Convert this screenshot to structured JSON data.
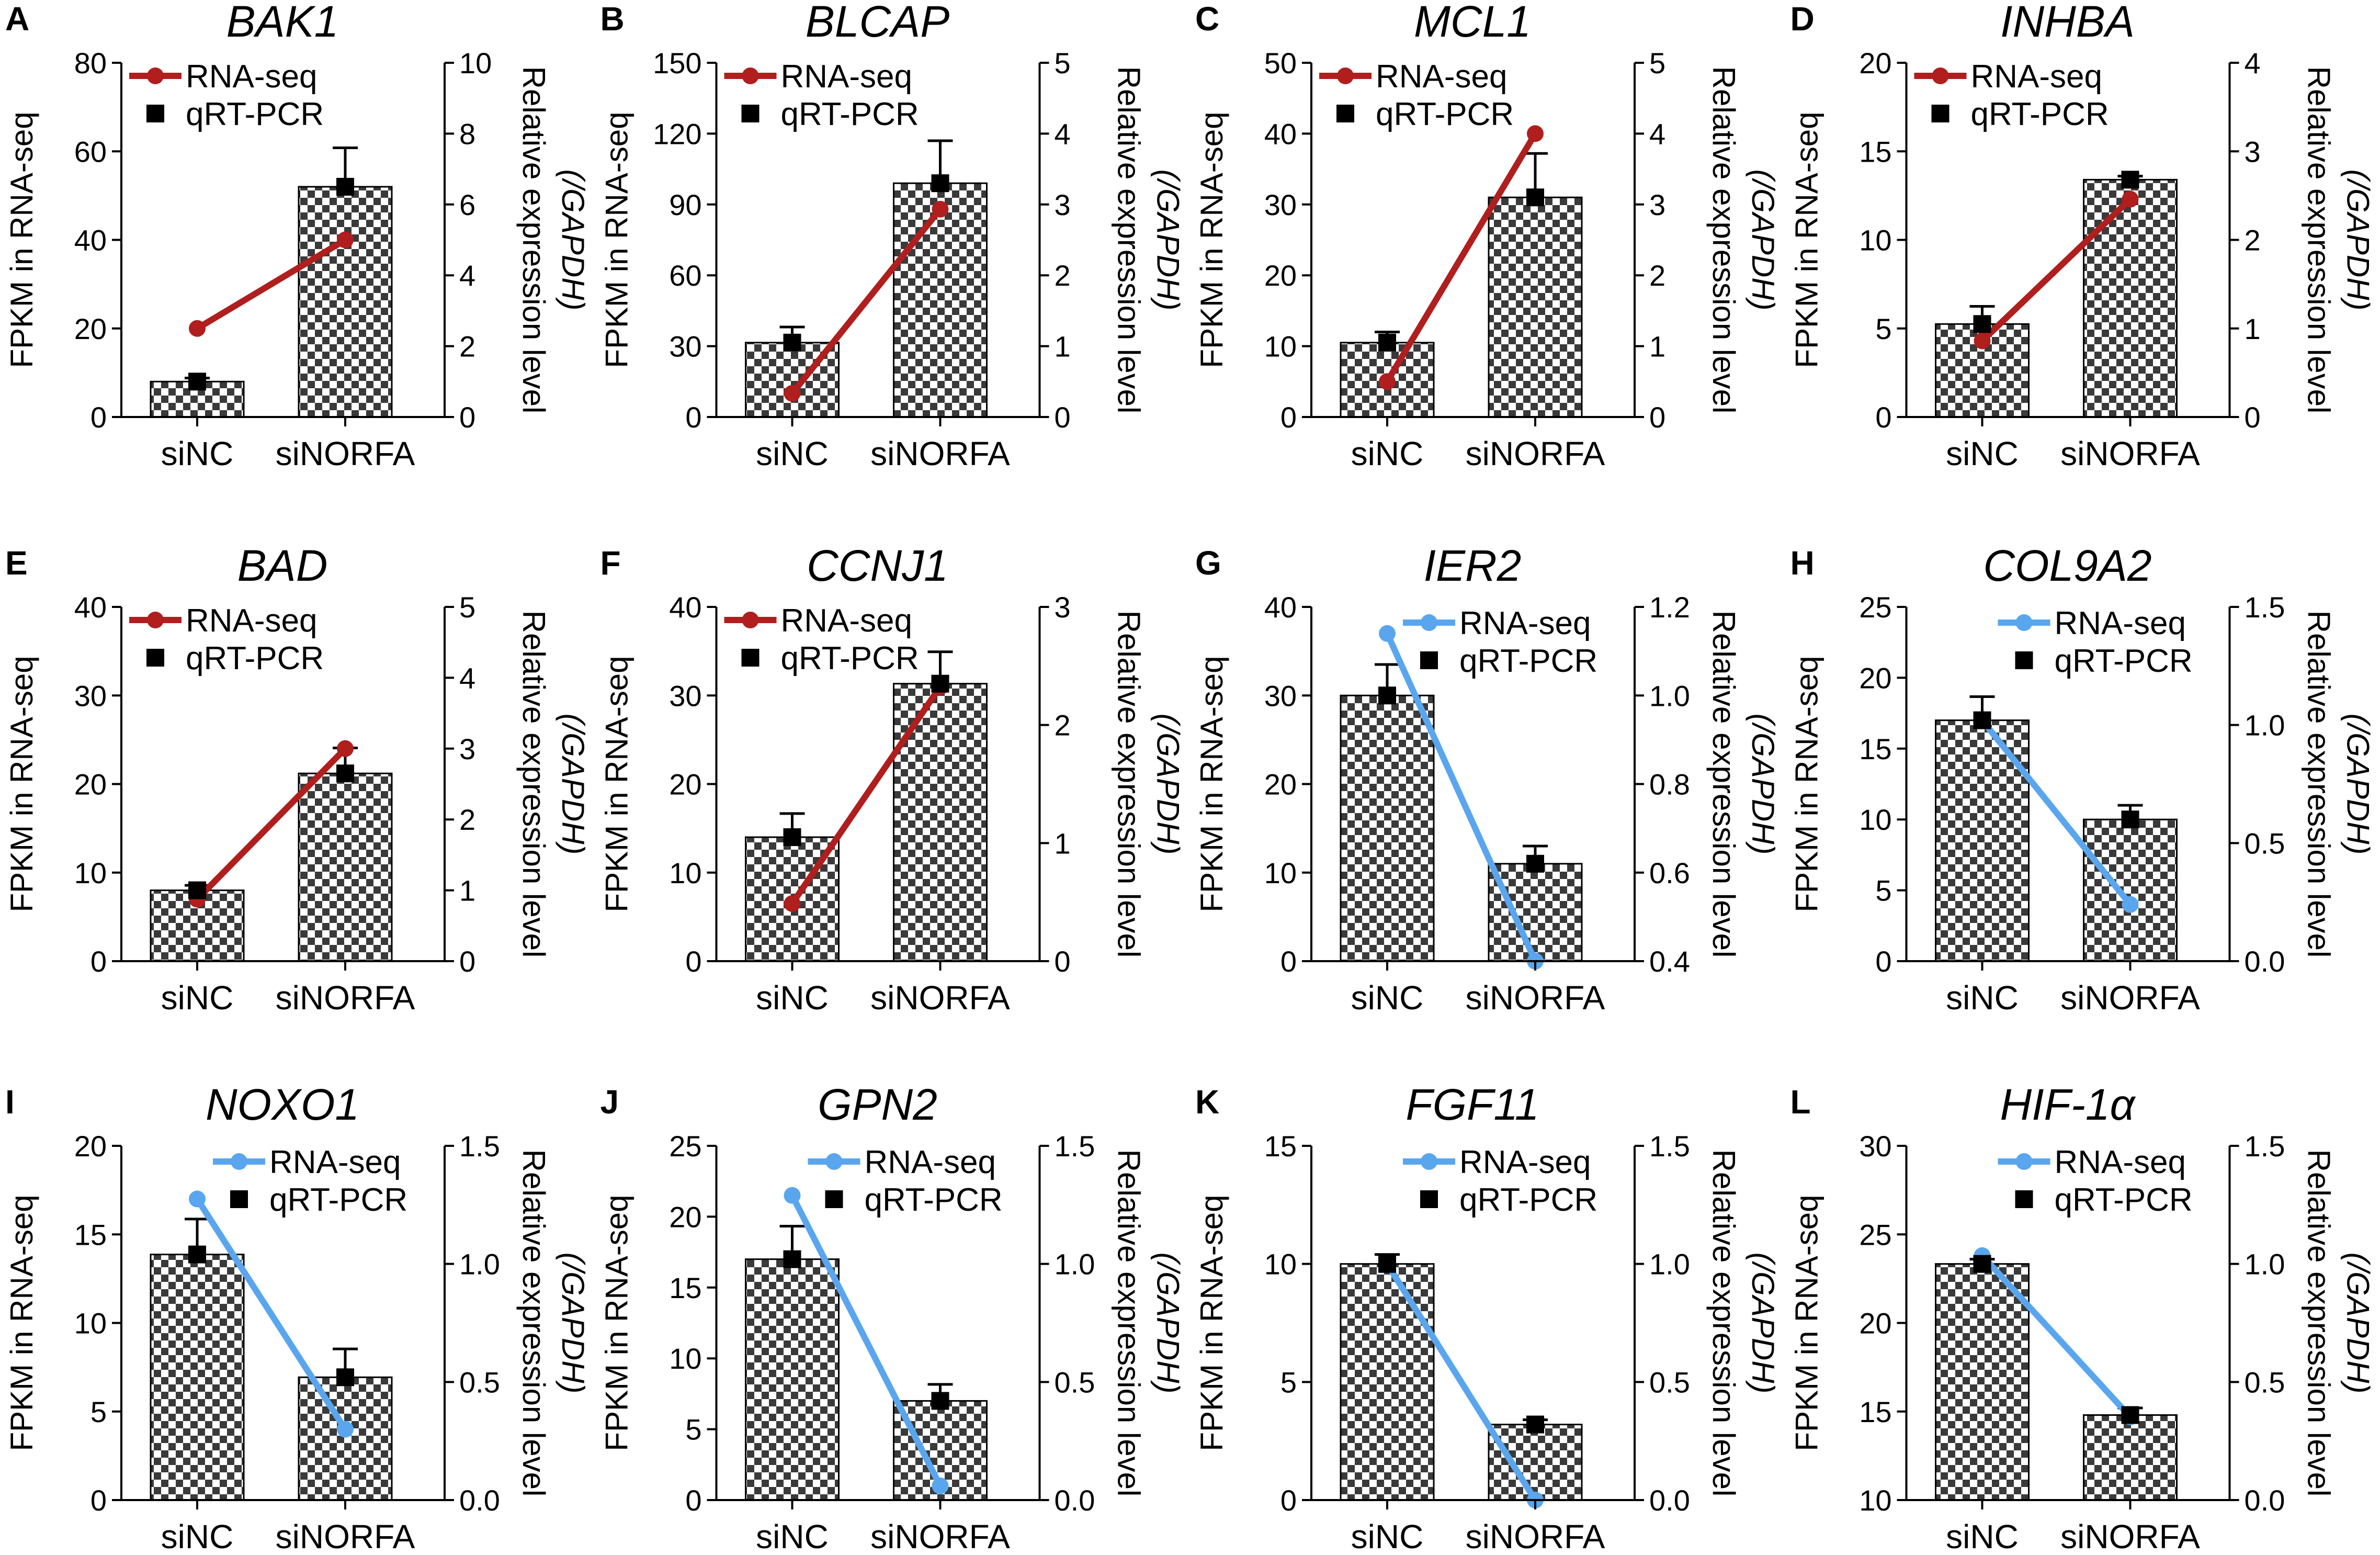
{
  "colors": {
    "upregulated_line": "#b01e1e",
    "downregulated_line": "#5aa6ee",
    "bar_dark": "#3a3a3a",
    "bar_light": "#ffffff",
    "marker": "#000000"
  },
  "legend": {
    "rnaseq": "RNA-seq",
    "qpcr": "qRT-PCR"
  },
  "axis_labels": {
    "left": "FPKM in RNA-seq",
    "right_line1": "Relative expression level",
    "right_line2": "(/GAPDH)"
  },
  "chart_data": [
    {
      "type": "bar+line",
      "panel": "A",
      "title": "BAK1",
      "categories": [
        "siNC",
        "siNORFA"
      ],
      "lineColor": "up",
      "left_ticks": [
        "0",
        "20",
        "40",
        "60",
        "80"
      ],
      "ylim": [
        0,
        80
      ],
      "right_ticks": [
        "0",
        "2",
        "4",
        "6",
        "8",
        "10"
      ],
      "y2lim": [
        0,
        10
      ],
      "series": [
        {
          "name": "RNA-seq",
          "axis": "left",
          "values": [
            20,
            40
          ]
        },
        {
          "name": "qRT-PCR",
          "axis": "right",
          "values": [
            1.0,
            6.5
          ],
          "errors": [
            0.1,
            1.1
          ]
        }
      ]
    },
    {
      "type": "bar+line",
      "panel": "B",
      "title": "BLCAP",
      "categories": [
        "siNC",
        "siNORFA"
      ],
      "lineColor": "up",
      "left_ticks": [
        "0",
        "30",
        "60",
        "90",
        "120",
        "150"
      ],
      "ylim": [
        0,
        150
      ],
      "right_ticks": [
        "0",
        "1",
        "2",
        "3",
        "4",
        "5"
      ],
      "y2lim": [
        0,
        5
      ],
      "series": [
        {
          "name": "RNA-seq",
          "axis": "left",
          "values": [
            10,
            88
          ]
        },
        {
          "name": "qRT-PCR",
          "axis": "right",
          "values": [
            1.05,
            3.3
          ],
          "errors": [
            0.22,
            0.6
          ]
        }
      ]
    },
    {
      "type": "bar+line",
      "panel": "C",
      "title": "MCL1",
      "categories": [
        "siNC",
        "siNORFA"
      ],
      "lineColor": "up",
      "left_ticks": [
        "0",
        "10",
        "20",
        "30",
        "40",
        "50"
      ],
      "ylim": [
        0,
        50
      ],
      "right_ticks": [
        "0",
        "1",
        "2",
        "3",
        "4",
        "5"
      ],
      "y2lim": [
        0,
        5
      ],
      "series": [
        {
          "name": "RNA-seq",
          "axis": "left",
          "values": [
            5,
            40
          ]
        },
        {
          "name": "qRT-PCR",
          "axis": "right",
          "values": [
            1.05,
            3.1
          ],
          "errors": [
            0.15,
            0.62
          ]
        }
      ]
    },
    {
      "type": "bar+line",
      "panel": "D",
      "title": "INHBA",
      "categories": [
        "siNC",
        "siNORFA"
      ],
      "lineColor": "up",
      "left_ticks": [
        "0",
        "5",
        "10",
        "15",
        "20"
      ],
      "ylim": [
        0,
        20
      ],
      "right_ticks": [
        "0",
        "1",
        "2",
        "3",
        "4"
      ],
      "y2lim": [
        0,
        4
      ],
      "series": [
        {
          "name": "RNA-seq",
          "axis": "left",
          "values": [
            4.3,
            12.3
          ]
        },
        {
          "name": "qRT-PCR",
          "axis": "right",
          "values": [
            1.05,
            2.68
          ],
          "errors": [
            0.2,
            0.04
          ]
        }
      ]
    },
    {
      "type": "bar+line",
      "panel": "E",
      "title": "BAD",
      "categories": [
        "siNC",
        "siNORFA"
      ],
      "lineColor": "up",
      "left_ticks": [
        "0",
        "10",
        "20",
        "30",
        "40"
      ],
      "ylim": [
        0,
        40
      ],
      "right_ticks": [
        "0",
        "1",
        "2",
        "3",
        "4",
        "5"
      ],
      "y2lim": [
        0,
        5
      ],
      "series": [
        {
          "name": "RNA-seq",
          "axis": "left",
          "values": [
            7,
            24
          ]
        },
        {
          "name": "qRT-PCR",
          "axis": "right",
          "values": [
            1.0,
            2.65
          ],
          "errors": [
            0.07,
            0.36
          ]
        }
      ]
    },
    {
      "type": "bar+line",
      "panel": "F",
      "title": "CCNJ1",
      "categories": [
        "siNC",
        "siNORFA"
      ],
      "lineColor": "up",
      "left_ticks": [
        "0",
        "10",
        "20",
        "30",
        "40"
      ],
      "ylim": [
        0,
        40
      ],
      "right_ticks": [
        "0",
        "1",
        "2",
        "3"
      ],
      "y2lim": [
        0,
        3
      ],
      "series": [
        {
          "name": "RNA-seq",
          "axis": "left",
          "values": [
            6.5,
            31
          ]
        },
        {
          "name": "qRT-PCR",
          "axis": "right",
          "values": [
            1.05,
            2.35
          ],
          "errors": [
            0.2,
            0.27
          ]
        }
      ]
    },
    {
      "type": "bar+line",
      "panel": "G",
      "title": "IER2",
      "categories": [
        "siNC",
        "siNORFA"
      ],
      "lineColor": "down",
      "left_ticks": [
        "0",
        "10",
        "20",
        "30",
        "40"
      ],
      "ylim": [
        0,
        40
      ],
      "right_ticks": [
        "0.4",
        "0.6",
        "0.8",
        "1.0",
        "1.2"
      ],
      "y2lim": [
        0.4,
        1.2
      ],
      "series": [
        {
          "name": "RNA-seq",
          "axis": "left",
          "values": [
            37,
            0
          ]
        },
        {
          "name": "qRT-PCR",
          "axis": "right",
          "values": [
            1.0,
            0.62
          ],
          "errors": [
            0.07,
            0.04
          ]
        }
      ]
    },
    {
      "type": "bar+line",
      "panel": "H",
      "title": "COL9A2",
      "categories": [
        "siNC",
        "siNORFA"
      ],
      "lineColor": "down",
      "left_ticks": [
        "0",
        "5",
        "10",
        "15",
        "20",
        "25"
      ],
      "ylim": [
        0,
        25
      ],
      "right_ticks": [
        "0.0",
        "0.5",
        "1.0",
        "1.5"
      ],
      "y2lim": [
        0,
        1.5
      ],
      "series": [
        {
          "name": "RNA-seq",
          "axis": "left",
          "values": [
            17,
            4
          ]
        },
        {
          "name": "qRT-PCR",
          "axis": "right",
          "values": [
            1.02,
            0.6
          ],
          "errors": [
            0.1,
            0.06
          ]
        }
      ]
    },
    {
      "type": "bar+line",
      "panel": "I",
      "title": "NOXO1",
      "categories": [
        "siNC",
        "siNORFA"
      ],
      "lineColor": "down",
      "left_ticks": [
        "0",
        "5",
        "10",
        "15",
        "20"
      ],
      "ylim": [
        0,
        20
      ],
      "right_ticks": [
        "0.0",
        "0.5",
        "1.0",
        "1.5"
      ],
      "y2lim": [
        0,
        1.5
      ],
      "series": [
        {
          "name": "RNA-seq",
          "axis": "left",
          "values": [
            17,
            4
          ]
        },
        {
          "name": "qRT-PCR",
          "axis": "right",
          "values": [
            1.04,
            0.52
          ],
          "errors": [
            0.15,
            0.12
          ]
        }
      ]
    },
    {
      "type": "bar+line",
      "panel": "J",
      "title": "GPN2",
      "categories": [
        "siNC",
        "siNORFA"
      ],
      "lineColor": "down",
      "left_ticks": [
        "0",
        "5",
        "10",
        "15",
        "20",
        "25"
      ],
      "ylim": [
        0,
        25
      ],
      "right_ticks": [
        "0.0",
        "0.5",
        "1.0",
        "1.5"
      ],
      "y2lim": [
        0,
        1.5
      ],
      "series": [
        {
          "name": "RNA-seq",
          "axis": "left",
          "values": [
            21.5,
            1
          ]
        },
        {
          "name": "qRT-PCR",
          "axis": "right",
          "values": [
            1.02,
            0.42
          ],
          "errors": [
            0.14,
            0.07
          ]
        }
      ]
    },
    {
      "type": "bar+line",
      "panel": "K",
      "title": "FGF11",
      "categories": [
        "siNC",
        "siNORFA"
      ],
      "lineColor": "down",
      "left_ticks": [
        "0",
        "5",
        "10",
        "15"
      ],
      "ylim": [
        0,
        15
      ],
      "right_ticks": [
        "0.0",
        "0.5",
        "1.0",
        "1.5"
      ],
      "y2lim": [
        0,
        1.5
      ],
      "series": [
        {
          "name": "RNA-seq",
          "axis": "left",
          "values": [
            10,
            0
          ]
        },
        {
          "name": "qRT-PCR",
          "axis": "right",
          "values": [
            1.0,
            0.32
          ],
          "errors": [
            0.04,
            0.02
          ]
        }
      ]
    },
    {
      "type": "bar+line",
      "panel": "L",
      "title": "HIF-1α",
      "categories": [
        "siNC",
        "siNORFA"
      ],
      "lineColor": "down",
      "left_ticks": [
        "10",
        "15",
        "20",
        "25",
        "30"
      ],
      "ylim": [
        10,
        30
      ],
      "right_ticks": [
        "0.0",
        "0.5",
        "1.0",
        "1.5"
      ],
      "y2lim": [
        0,
        1.5
      ],
      "series": [
        {
          "name": "RNA-seq",
          "axis": "left",
          "values": [
            23.8,
            14.7
          ]
        },
        {
          "name": "qRT-PCR",
          "axis": "right",
          "values": [
            1.0,
            0.36
          ],
          "errors": [
            0.02,
            0.03
          ]
        }
      ]
    }
  ]
}
